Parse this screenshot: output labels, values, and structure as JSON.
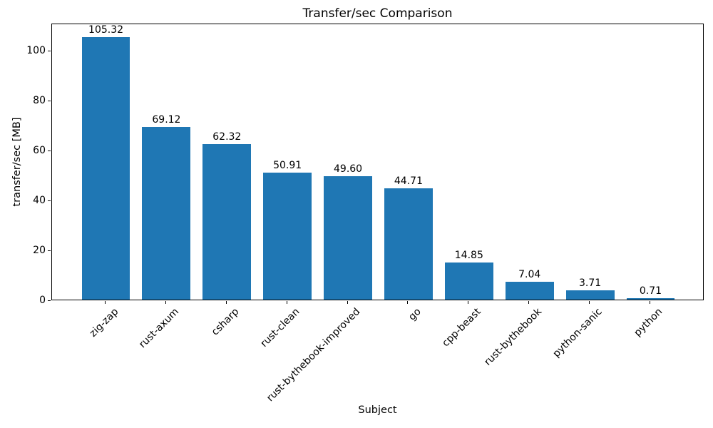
{
  "chart_data": {
    "type": "bar",
    "title": "Transfer/sec Comparison",
    "xlabel": "Subject",
    "ylabel": "transfer/sec [MB]",
    "categories": [
      "zig-zap",
      "rust-axum",
      "csharp",
      "rust-clean",
      "rust-bythebook-improved",
      "go",
      "cpp-beast",
      "rust-bythebook",
      "python-sanic",
      "python"
    ],
    "values": [
      105.32,
      69.12,
      62.32,
      50.91,
      49.6,
      44.71,
      14.85,
      7.04,
      3.71,
      0.71
    ],
    "value_labels": [
      "105.32",
      "69.12",
      "62.32",
      "50.91",
      "49.60",
      "44.71",
      "14.85",
      "7.04",
      "3.71",
      "0.71"
    ],
    "yticks": [
      0,
      20,
      40,
      60,
      80,
      100
    ],
    "ylim": [
      0,
      111
    ],
    "x_tick_rotation_deg": 45,
    "grid": false,
    "legend": null,
    "bar_color": "#1f77b4",
    "axis_color": "#000000",
    "text_color": "#000000"
  }
}
